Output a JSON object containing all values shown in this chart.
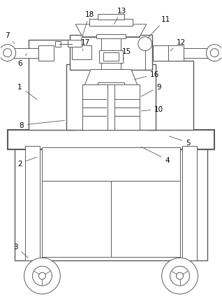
{
  "bg_color": "#ffffff",
  "line_color": "#5a5a5a",
  "fig_width": 3.18,
  "fig_height": 4.35,
  "dpi": 100
}
